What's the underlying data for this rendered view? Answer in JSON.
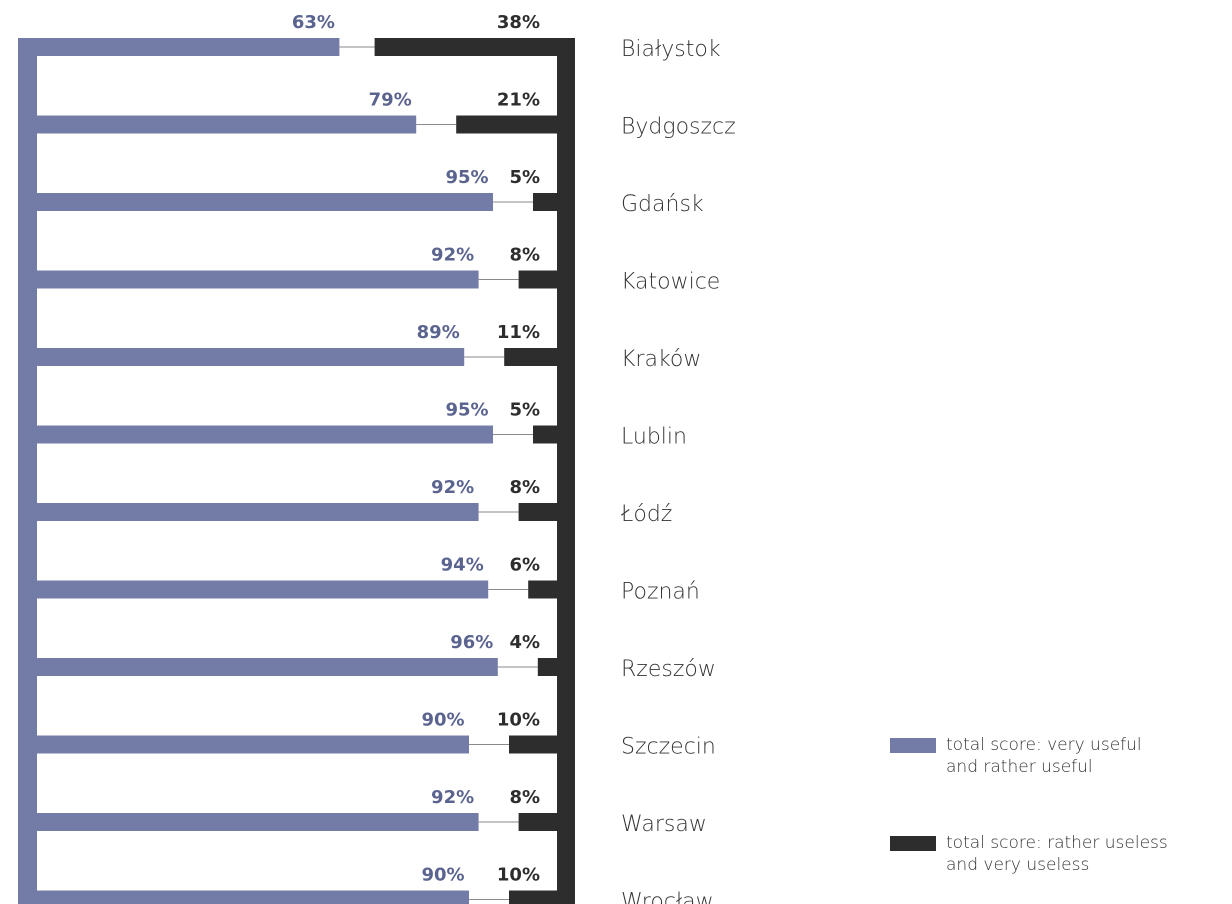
{
  "chart_data": {
    "type": "bar",
    "orientation": "horizontal-diverging",
    "categories": [
      "Białystok",
      "Bydgoszcz",
      "Gdańsk",
      "Katowice",
      "Kraków",
      "Lublin",
      "Łódź",
      "Poznań",
      "Rzeszów",
      "Szczecin",
      "Warsaw",
      "Wrocław"
    ],
    "series": [
      {
        "name": "total score: very useful and rather useful",
        "color": "#737ca6",
        "label_color": "#5b648f",
        "values": [
          63,
          79,
          95,
          92,
          89,
          95,
          92,
          94,
          96,
          90,
          92,
          90
        ],
        "labels": [
          "63%",
          "79%",
          "95%",
          "92%",
          "89%",
          "95%",
          "92%",
          "94%",
          "96%",
          "90%",
          "92%",
          "90%"
        ]
      },
      {
        "name": "total score: rather useless and very useless",
        "color": "#2d2d2d",
        "label_color": "#2d2d2d",
        "values": [
          38,
          21,
          5,
          8,
          11,
          5,
          8,
          6,
          4,
          10,
          8,
          10
        ],
        "labels": [
          "38%",
          "21%",
          "5%",
          "8%",
          "11%",
          "5%",
          "8%",
          "6%",
          "4%",
          "10%",
          "8%",
          "10%"
        ]
      }
    ],
    "xlim": [
      0,
      100
    ],
    "grid": false,
    "legend_position": "bottom-right"
  },
  "legend": {
    "positive_line1": "total score: very useful",
    "positive_line2": "and rather useful",
    "negative_line1": "total score: rather useless",
    "negative_line2": "and very useless"
  }
}
